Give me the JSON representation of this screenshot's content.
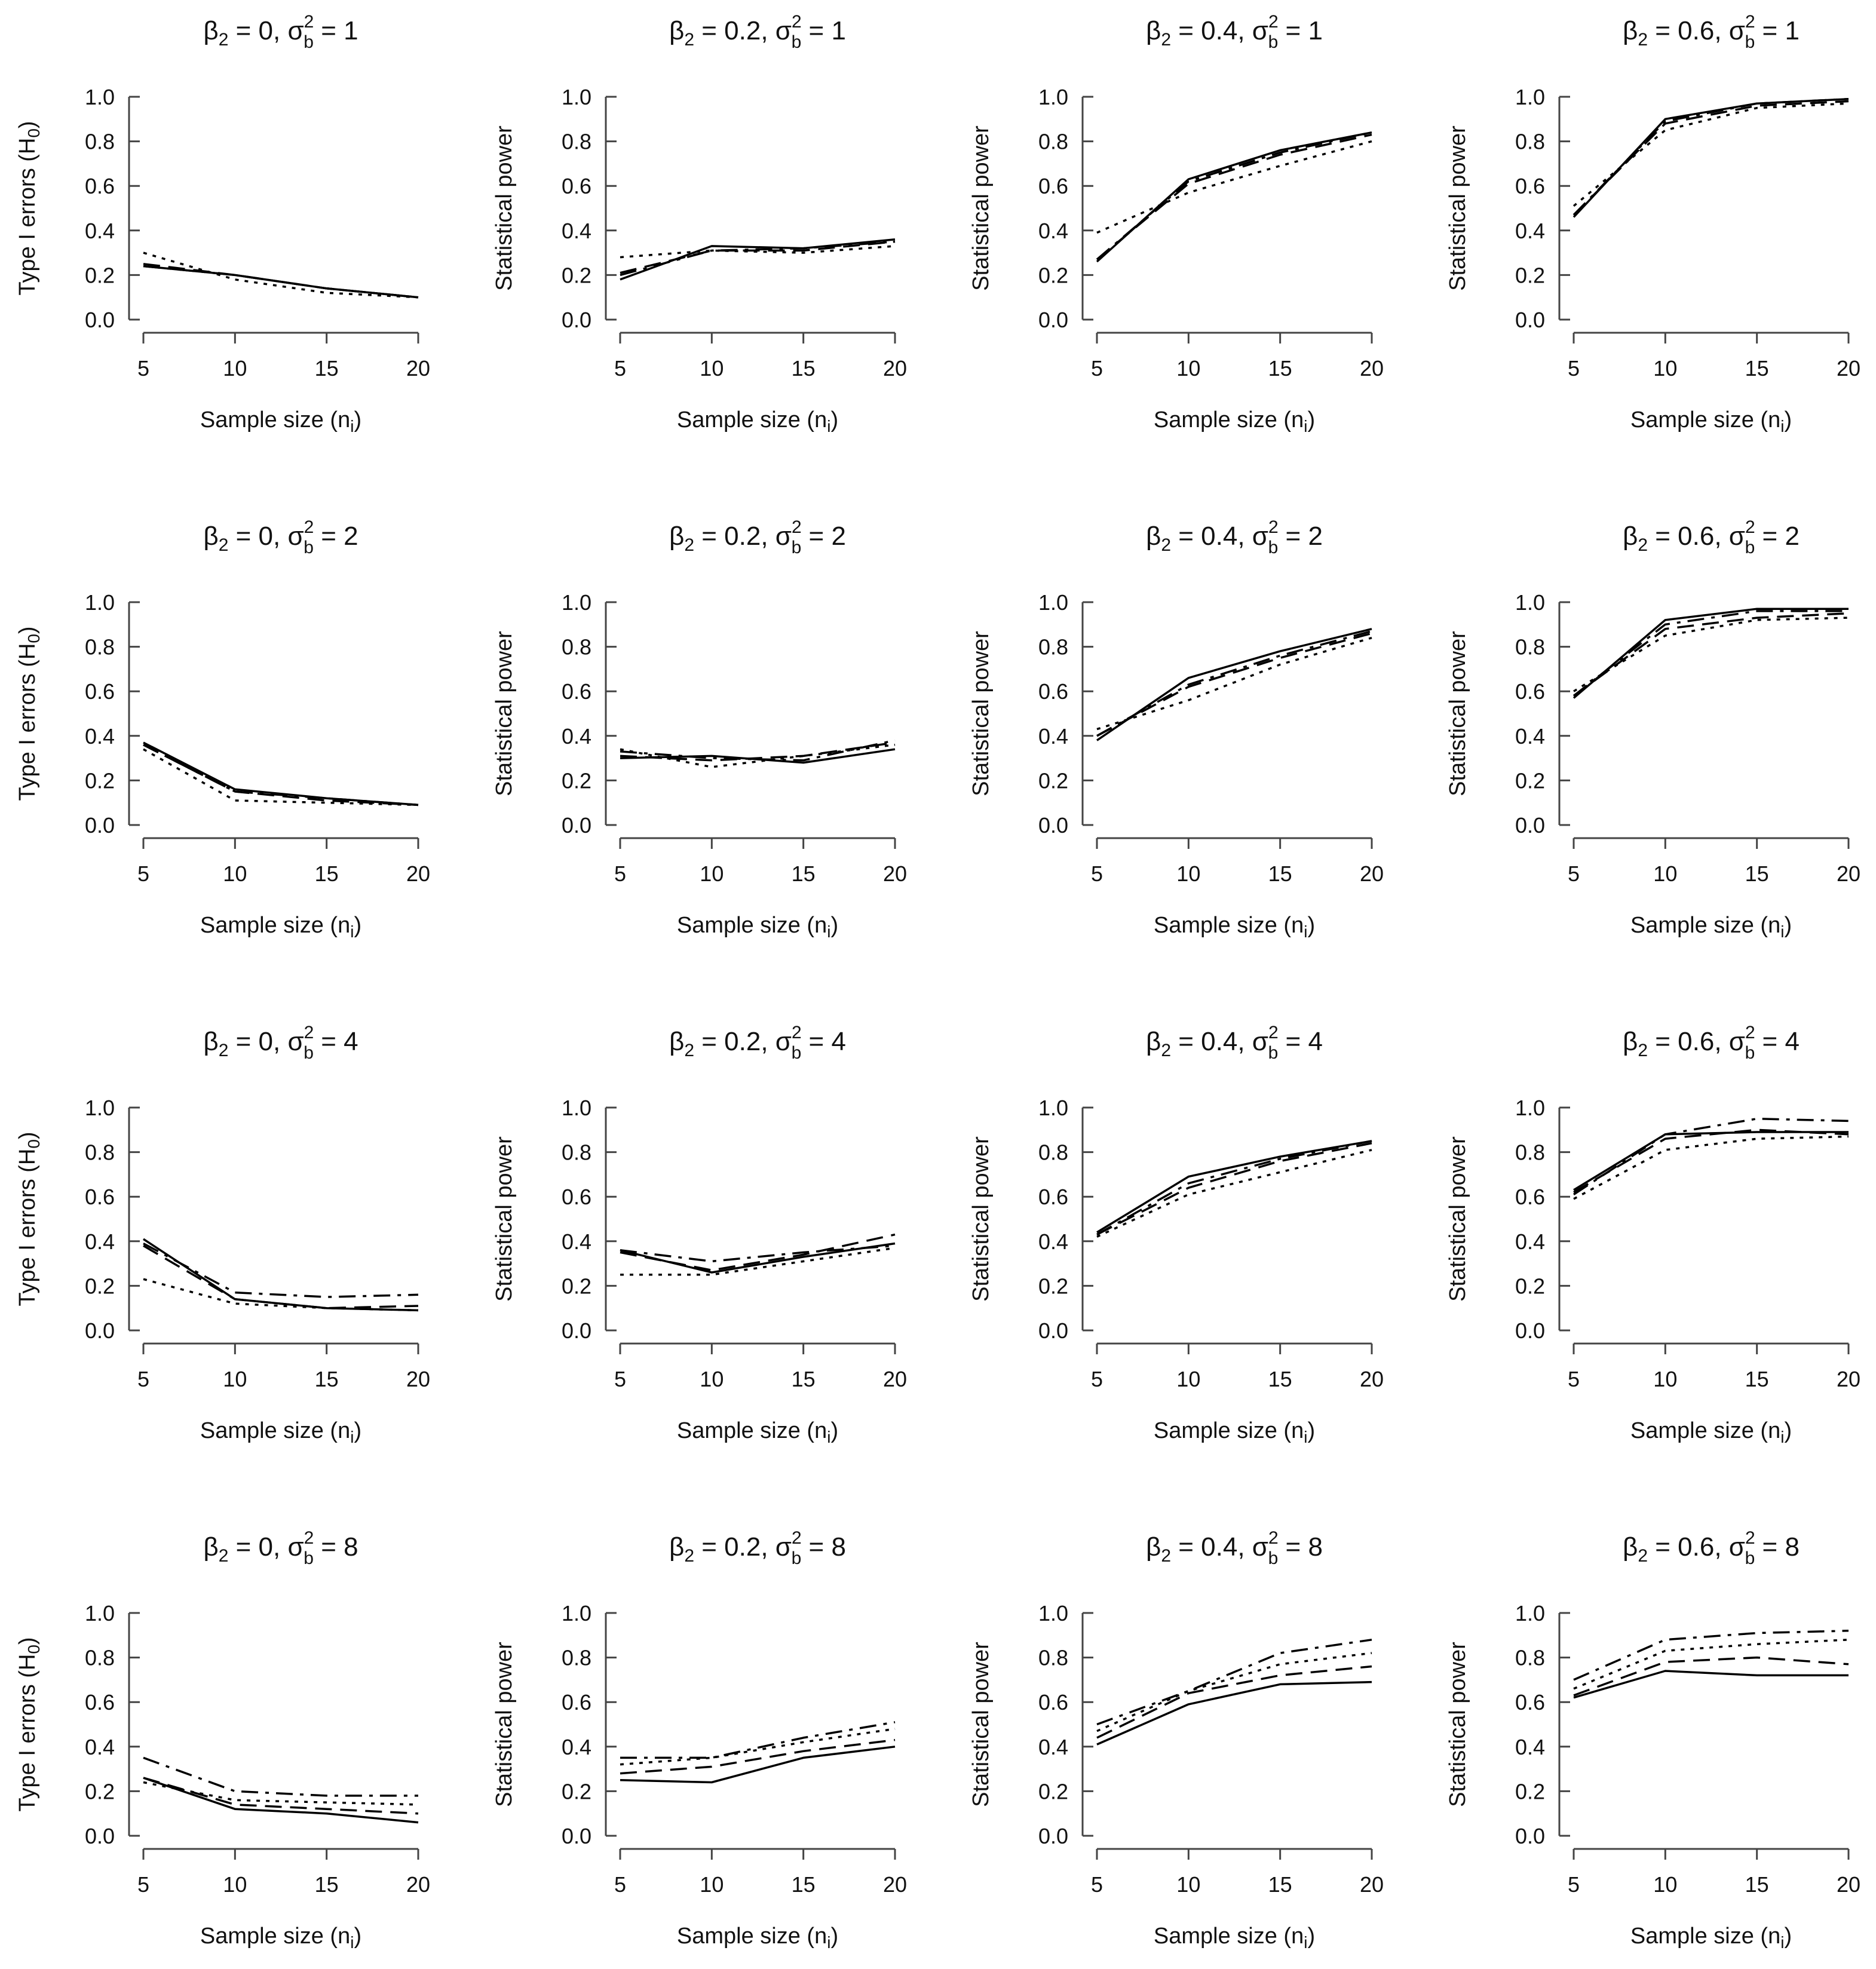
{
  "chart_data": {
    "type": "line",
    "layout": "4x4 grid",
    "x": [
      5,
      10,
      15,
      20
    ],
    "xlim": [
      5,
      20
    ],
    "ylim": [
      0,
      1
    ],
    "y_ticks": [
      "0.0",
      "0.2",
      "0.4",
      "0.6",
      "0.8",
      "1.0"
    ],
    "x_ticks": [
      "5",
      "10",
      "15",
      "20"
    ],
    "xlabel": {
      "main": "Sample size (n",
      "sub": "i",
      "tail": ")"
    },
    "ylabel_h0": {
      "main": "Type I errors (H",
      "sub": "0",
      "tail": ")"
    },
    "ylabel_power": "Statistical power",
    "title_parts": {
      "beta": "β",
      "beta_sub": "2",
      "eq": " = ",
      "sep": ", ",
      "sigma": "σ",
      "sigma_sup": "2",
      "sigma_sub": "b",
      "eq2": " = "
    },
    "series_styles": [
      "solid",
      "dashed",
      "dotted",
      "dashdot"
    ],
    "panels": [
      {
        "beta": "0",
        "sigma": "1",
        "ylabel": "h0",
        "series": [
          [
            0.24,
            0.2,
            0.14,
            0.1
          ],
          [
            0.25,
            0.2,
            0.14,
            0.1
          ],
          [
            0.3,
            0.18,
            0.12,
            0.1
          ],
          [
            0.24,
            0.2,
            0.14,
            0.1
          ]
        ]
      },
      {
        "beta": "0.2",
        "sigma": "1",
        "ylabel": "power",
        "series": [
          [
            0.18,
            0.33,
            0.32,
            0.36
          ],
          [
            0.21,
            0.31,
            0.31,
            0.35
          ],
          [
            0.28,
            0.31,
            0.3,
            0.33
          ],
          [
            0.2,
            0.31,
            0.32,
            0.35
          ]
        ]
      },
      {
        "beta": "0.4",
        "sigma": "1",
        "ylabel": "power",
        "series": [
          [
            0.26,
            0.63,
            0.76,
            0.84
          ],
          [
            0.27,
            0.61,
            0.74,
            0.83
          ],
          [
            0.39,
            0.57,
            0.69,
            0.8
          ],
          [
            0.27,
            0.62,
            0.75,
            0.84
          ]
        ]
      },
      {
        "beta": "0.6",
        "sigma": "1",
        "ylabel": "power",
        "series": [
          [
            0.46,
            0.9,
            0.97,
            0.99
          ],
          [
            0.47,
            0.88,
            0.96,
            0.98
          ],
          [
            0.51,
            0.85,
            0.95,
            0.97
          ],
          [
            0.47,
            0.89,
            0.97,
            0.99
          ]
        ]
      },
      {
        "beta": "0",
        "sigma": "2",
        "ylabel": "h0",
        "series": [
          [
            0.37,
            0.16,
            0.12,
            0.09
          ],
          [
            0.36,
            0.15,
            0.11,
            0.09
          ],
          [
            0.34,
            0.11,
            0.1,
            0.09
          ],
          [
            0.36,
            0.15,
            0.12,
            0.09
          ]
        ]
      },
      {
        "beta": "0.2",
        "sigma": "2",
        "ylabel": "power",
        "series": [
          [
            0.3,
            0.31,
            0.28,
            0.34
          ],
          [
            0.31,
            0.29,
            0.31,
            0.37
          ],
          [
            0.34,
            0.26,
            0.31,
            0.36
          ],
          [
            0.33,
            0.3,
            0.29,
            0.38
          ]
        ]
      },
      {
        "beta": "0.4",
        "sigma": "2",
        "ylabel": "power",
        "series": [
          [
            0.38,
            0.66,
            0.78,
            0.88
          ],
          [
            0.4,
            0.62,
            0.75,
            0.86
          ],
          [
            0.43,
            0.56,
            0.72,
            0.84
          ],
          [
            0.4,
            0.63,
            0.76,
            0.87
          ]
        ]
      },
      {
        "beta": "0.6",
        "sigma": "2",
        "ylabel": "power",
        "series": [
          [
            0.57,
            0.92,
            0.97,
            0.97
          ],
          [
            0.58,
            0.88,
            0.93,
            0.95
          ],
          [
            0.6,
            0.85,
            0.92,
            0.93
          ],
          [
            0.58,
            0.9,
            0.96,
            0.96
          ]
        ]
      },
      {
        "beta": "0",
        "sigma": "4",
        "ylabel": "h0",
        "series": [
          [
            0.41,
            0.14,
            0.1,
            0.09
          ],
          [
            0.38,
            0.14,
            0.1,
            0.11
          ],
          [
            0.23,
            0.12,
            0.1,
            0.09
          ],
          [
            0.39,
            0.17,
            0.15,
            0.16
          ]
        ]
      },
      {
        "beta": "0.2",
        "sigma": "4",
        "ylabel": "power",
        "series": [
          [
            0.36,
            0.26,
            0.33,
            0.39
          ],
          [
            0.35,
            0.27,
            0.34,
            0.43
          ],
          [
            0.25,
            0.25,
            0.31,
            0.37
          ],
          [
            0.36,
            0.31,
            0.35,
            0.38
          ]
        ]
      },
      {
        "beta": "0.4",
        "sigma": "4",
        "ylabel": "power",
        "series": [
          [
            0.44,
            0.69,
            0.78,
            0.85
          ],
          [
            0.43,
            0.64,
            0.76,
            0.84
          ],
          [
            0.42,
            0.61,
            0.71,
            0.81
          ],
          [
            0.43,
            0.66,
            0.77,
            0.85
          ]
        ]
      },
      {
        "beta": "0.6",
        "sigma": "4",
        "ylabel": "power",
        "series": [
          [
            0.63,
            0.88,
            0.89,
            0.89
          ],
          [
            0.62,
            0.86,
            0.9,
            0.88
          ],
          [
            0.59,
            0.81,
            0.86,
            0.87
          ],
          [
            0.61,
            0.88,
            0.95,
            0.94
          ]
        ]
      },
      {
        "beta": "0",
        "sigma": "8",
        "ylabel": "h0",
        "series": [
          [
            0.26,
            0.12,
            0.1,
            0.06
          ],
          [
            0.26,
            0.14,
            0.12,
            0.1
          ],
          [
            0.24,
            0.16,
            0.15,
            0.14
          ],
          [
            0.35,
            0.2,
            0.18,
            0.18
          ]
        ]
      },
      {
        "beta": "0.2",
        "sigma": "8",
        "ylabel": "power",
        "series": [
          [
            0.25,
            0.24,
            0.35,
            0.4
          ],
          [
            0.28,
            0.31,
            0.38,
            0.43
          ],
          [
            0.32,
            0.35,
            0.42,
            0.48
          ],
          [
            0.35,
            0.35,
            0.44,
            0.51
          ]
        ]
      },
      {
        "beta": "0.4",
        "sigma": "8",
        "ylabel": "power",
        "series": [
          [
            0.41,
            0.59,
            0.68,
            0.69
          ],
          [
            0.44,
            0.64,
            0.72,
            0.76
          ],
          [
            0.47,
            0.65,
            0.77,
            0.82
          ],
          [
            0.5,
            0.65,
            0.82,
            0.88
          ]
        ]
      },
      {
        "beta": "0.6",
        "sigma": "8",
        "ylabel": "power",
        "series": [
          [
            0.62,
            0.74,
            0.72,
            0.72
          ],
          [
            0.63,
            0.78,
            0.8,
            0.77
          ],
          [
            0.66,
            0.83,
            0.86,
            0.88
          ],
          [
            0.7,
            0.88,
            0.91,
            0.92
          ]
        ]
      }
    ]
  }
}
